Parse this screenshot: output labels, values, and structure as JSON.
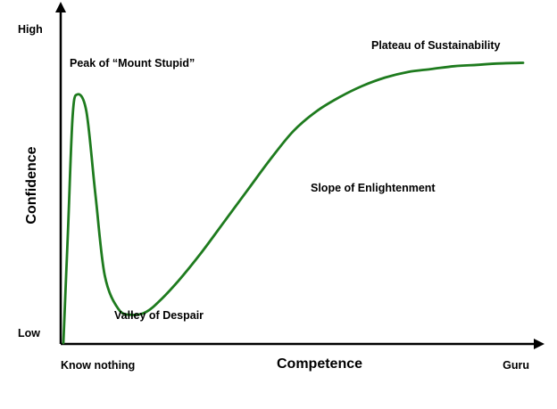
{
  "chart_data": {
    "type": "line",
    "xlabel": "Competence",
    "ylabel": "Confidence",
    "x_tick_labels": [
      "Know nothing",
      "Guru"
    ],
    "y_tick_labels": [
      "Low",
      "High"
    ],
    "xlim": [
      0,
      1
    ],
    "ylim": [
      0,
      1
    ],
    "grid": false,
    "series": [
      {
        "color": "#1e7b1e",
        "x": [
          0.0,
          0.01,
          0.02,
          0.03,
          0.05,
          0.07,
          0.09,
          0.12,
          0.15,
          0.18,
          0.21,
          0.25,
          0.3,
          0.35,
          0.4,
          0.45,
          0.5,
          0.55,
          0.6,
          0.65,
          0.7,
          0.75,
          0.8,
          0.85,
          0.9,
          0.95,
          1.0
        ],
        "y": [
          0.0,
          0.4,
          0.8,
          0.88,
          0.82,
          0.52,
          0.24,
          0.12,
          0.1,
          0.11,
          0.15,
          0.22,
          0.32,
          0.43,
          0.54,
          0.65,
          0.75,
          0.82,
          0.87,
          0.91,
          0.94,
          0.96,
          0.97,
          0.98,
          0.985,
          0.99,
          0.992
        ]
      }
    ],
    "annotations": [
      {
        "text": "Peak of “Mount Stupid”",
        "x": 0.02,
        "y": 0.92
      },
      {
        "text": "Valley of Despair",
        "x": 0.11,
        "y": 0.02
      },
      {
        "text": "Slope of Enlightenment",
        "x": 0.54,
        "y": 0.5
      },
      {
        "text": "Plateau of Sustainability",
        "x": 0.67,
        "y": 1.0
      }
    ]
  }
}
